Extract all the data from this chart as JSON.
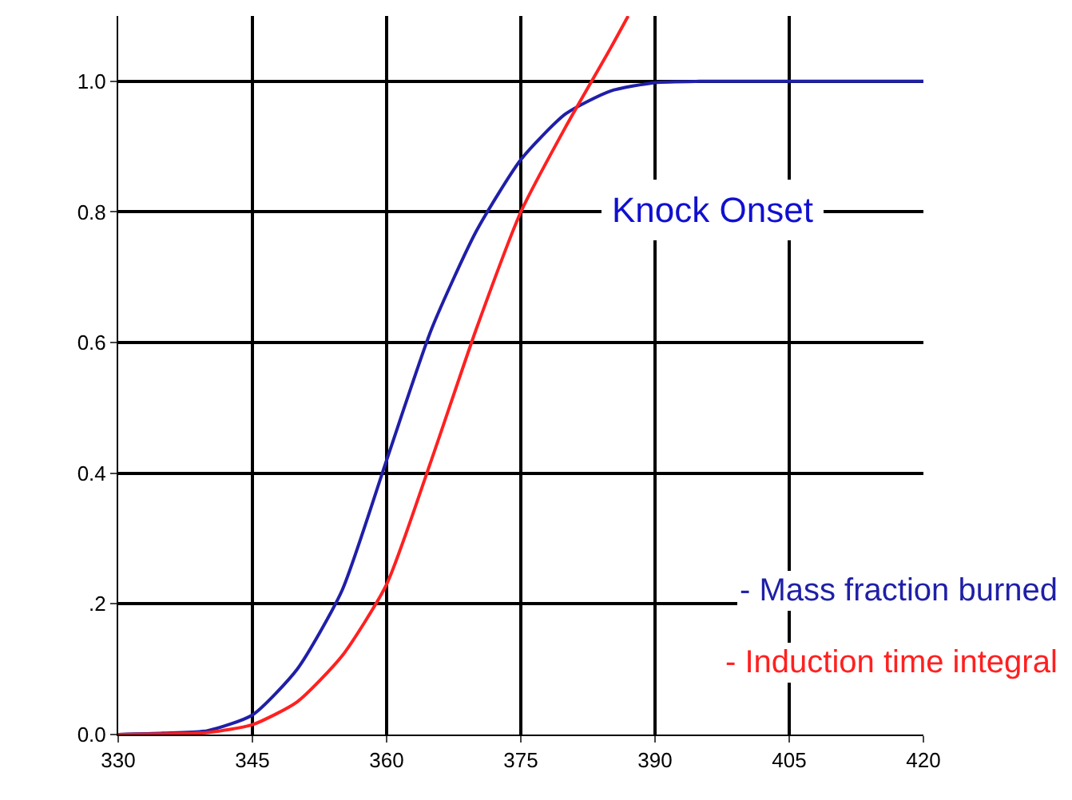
{
  "chart_data": {
    "type": "line",
    "x": [
      330,
      335,
      340,
      345,
      350,
      355,
      360,
      365,
      370,
      375,
      380,
      385,
      390,
      395,
      400,
      405,
      410,
      415,
      420
    ],
    "series": [
      {
        "name": "- Mass fraction burned",
        "color": "#1f1fa8",
        "values": [
          0,
          0.002,
          0.006,
          0.03,
          0.1,
          0.22,
          0.42,
          0.62,
          0.77,
          0.88,
          0.95,
          0.985,
          0.998,
          1.0,
          1.0,
          1.0,
          1.0,
          1.0,
          1.0
        ]
      },
      {
        "name": "- Induction time integral",
        "color": "#ff2020",
        "x": [
          330,
          335,
          340,
          345,
          350,
          355,
          360,
          365,
          370,
          375,
          380,
          385,
          387
        ],
        "values": [
          0,
          0.001,
          0.003,
          0.015,
          0.05,
          0.12,
          0.23,
          0.42,
          0.62,
          0.8,
          0.93,
          1.05,
          1.1
        ]
      }
    ],
    "xlim": [
      330,
      420
    ],
    "xticks": [
      330,
      345,
      360,
      375,
      390,
      405,
      420
    ],
    "ylim": [
      0,
      1.1
    ],
    "yticks": [
      {
        "value": 0,
        "label": "0.0"
      },
      {
        "value": 0.2,
        "label": ".2"
      },
      {
        "value": 0.4,
        "label": "0.4"
      },
      {
        "value": 0.6,
        "label": "0.6"
      },
      {
        "value": 0.8,
        "label": "0.8"
      },
      {
        "value": 1,
        "label": "1.0"
      }
    ],
    "grid": true,
    "legend": "bottom right",
    "marker": "none",
    "line_style": "solid",
    "annotations": [
      "Knock Onset"
    ]
  }
}
